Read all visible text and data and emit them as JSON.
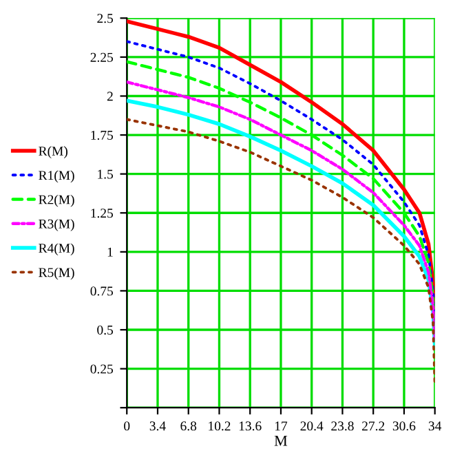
{
  "chart_data": {
    "type": "line",
    "xlabel": "M",
    "x": [
      0,
      3.4,
      6.8,
      10.2,
      13.6,
      17,
      20.4,
      23.8,
      27.2,
      30.6,
      32.3,
      33.3,
      33.8,
      34
    ],
    "series": [
      {
        "name": "R(M)",
        "color": "#ff0000",
        "line_style": "solid",
        "values": [
          2.48,
          2.43,
          2.38,
          2.31,
          2.2,
          2.09,
          1.96,
          1.82,
          1.65,
          1.4,
          1.25,
          1.05,
          0.8,
          0.6
        ]
      },
      {
        "name": "R1(M)",
        "color": "#0000ff",
        "line_style": "dotted",
        "values": [
          2.35,
          2.3,
          2.25,
          2.18,
          2.08,
          1.97,
          1.85,
          1.72,
          1.56,
          1.32,
          1.17,
          0.98,
          0.75,
          0.55
        ]
      },
      {
        "name": "R2(M)",
        "color": "#00ff00",
        "line_style": "dashed",
        "values": [
          2.22,
          2.17,
          2.12,
          2.05,
          1.96,
          1.86,
          1.75,
          1.62,
          1.47,
          1.25,
          1.1,
          0.93,
          0.7,
          0.5
        ]
      },
      {
        "name": "R3(M)",
        "color": "#ff00ff",
        "line_style": "dashdot",
        "values": [
          2.09,
          2.04,
          1.99,
          1.93,
          1.85,
          1.75,
          1.65,
          1.53,
          1.38,
          1.17,
          1.04,
          0.87,
          0.65,
          0.45
        ]
      },
      {
        "name": "R4(M)",
        "color": "#00ffff",
        "line_style": "solid",
        "values": [
          1.97,
          1.93,
          1.88,
          1.82,
          1.74,
          1.65,
          1.55,
          1.44,
          1.3,
          1.1,
          0.97,
          0.82,
          0.62,
          0.4
        ]
      },
      {
        "name": "R5(M)",
        "color": "#993300",
        "line_style": "dotted",
        "values": [
          1.85,
          1.81,
          1.77,
          1.71,
          1.64,
          1.55,
          1.46,
          1.35,
          1.22,
          1.04,
          0.92,
          0.77,
          0.55,
          0.15
        ]
      }
    ],
    "xlim": [
      0,
      34
    ],
    "ylim": [
      0,
      2.5
    ],
    "xticks": [
      0,
      3.4,
      6.8,
      10.2,
      13.6,
      17,
      20.4,
      23.8,
      27.2,
      30.6,
      34
    ],
    "yticks": [
      {
        "value": 0,
        "label": null
      },
      0.25,
      0.5,
      0.75,
      1,
      1.25,
      1.5,
      1.75,
      2,
      2.25,
      2.5
    ],
    "grid": true,
    "legend": "left"
  }
}
